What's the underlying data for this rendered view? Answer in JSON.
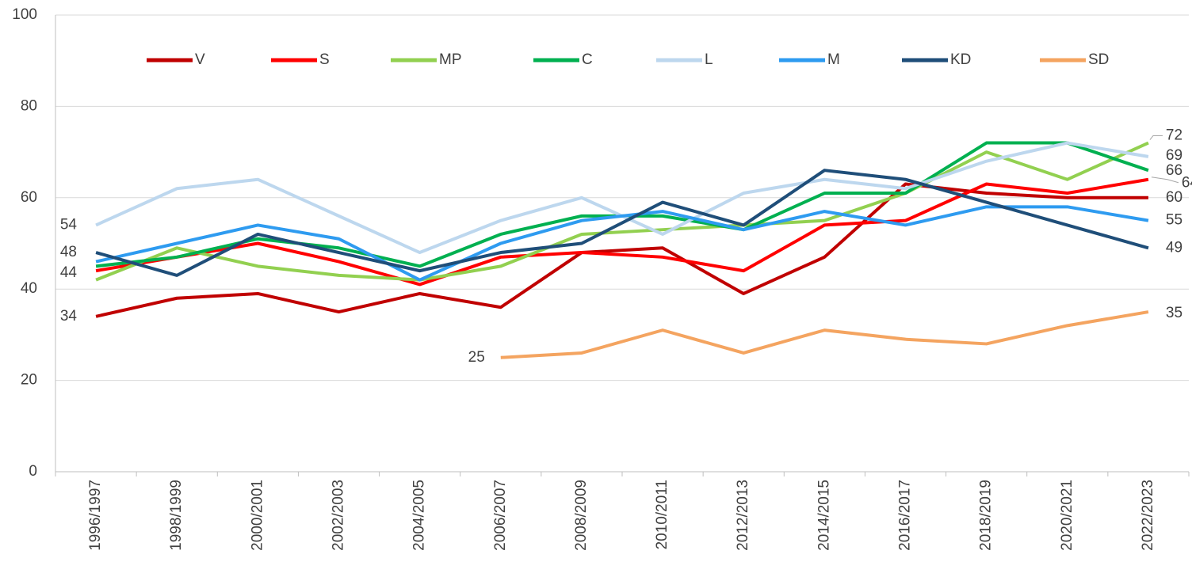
{
  "chart_data": {
    "type": "line",
    "categories": [
      "1996/1997",
      "1998/1999",
      "2000/2001",
      "2002/2003",
      "2004/2005",
      "2006/2007",
      "2008/2009",
      "2010/2011",
      "2012/2013",
      "2014/2015",
      "2016/2017",
      "2018/2019",
      "2020/2021",
      "2022/2023"
    ],
    "series": [
      {
        "name": "V",
        "color": "#c00000",
        "values": [
          34,
          38,
          39,
          35,
          39,
          36,
          48,
          49,
          39,
          47,
          63,
          61,
          60,
          60
        ]
      },
      {
        "name": "S",
        "color": "#ff0000",
        "values": [
          44,
          47,
          50,
          46,
          41,
          47,
          48,
          47,
          44,
          54,
          55,
          63,
          61,
          64
        ]
      },
      {
        "name": "MP",
        "color": "#92d050",
        "values": [
          42,
          49,
          45,
          43,
          42,
          45,
          52,
          53,
          54,
          55,
          61,
          70,
          64,
          72
        ]
      },
      {
        "name": "C",
        "color": "#00b050",
        "values": [
          45,
          47,
          51,
          49,
          45,
          52,
          56,
          56,
          53,
          61,
          61,
          72,
          72,
          66
        ]
      },
      {
        "name": "L",
        "color": "#bdd7ee",
        "values": [
          54,
          62,
          64,
          56,
          48,
          55,
          60,
          52,
          61,
          64,
          62,
          68,
          72,
          69
        ]
      },
      {
        "name": "M",
        "color": "#2e9bf0",
        "values": [
          46,
          50,
          54,
          51,
          42,
          50,
          55,
          57,
          53,
          57,
          54,
          58,
          58,
          55
        ]
      },
      {
        "name": "KD",
        "color": "#1f4e79",
        "values": [
          48,
          43,
          52,
          48,
          44,
          48,
          50,
          59,
          54,
          66,
          64,
          59,
          54,
          49
        ]
      },
      {
        "name": "SD",
        "color": "#f4a460",
        "values": [
          null,
          null,
          null,
          null,
          null,
          25,
          26,
          31,
          26,
          31,
          29,
          28,
          32,
          35
        ]
      }
    ],
    "ylim": [
      0,
      100
    ],
    "yticks": [
      0,
      20,
      40,
      60,
      80,
      100
    ],
    "grid": true,
    "legend": "top"
  }
}
